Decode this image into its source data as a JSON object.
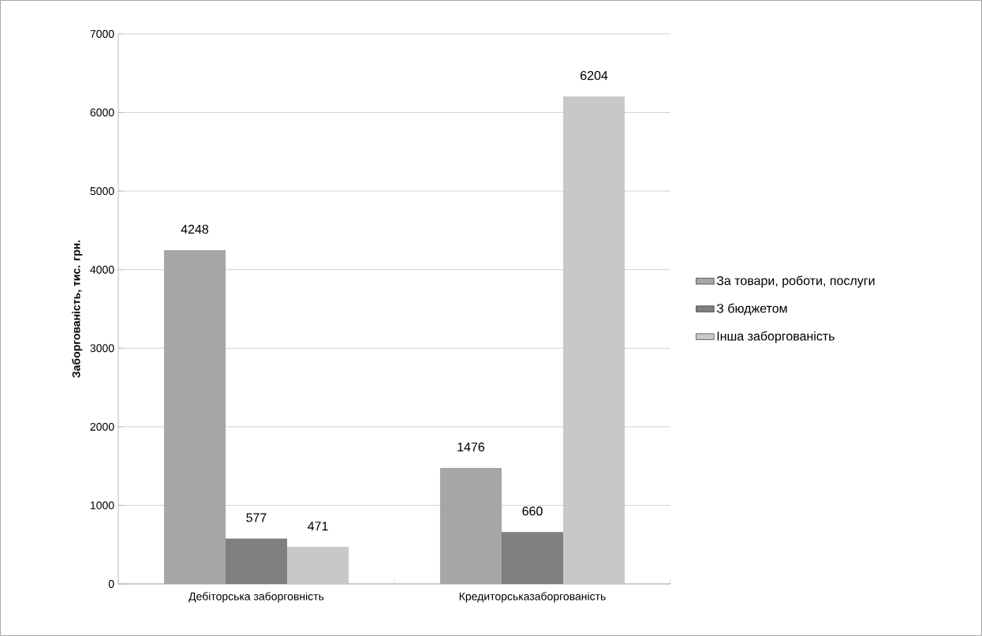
{
  "chart_data": {
    "type": "bar",
    "ylabel": "Заборгованість, тис. грн.",
    "categories": [
      "Дебіторська заборговність",
      "Кредиторськазаборгованість"
    ],
    "series": [
      {
        "name": "За товари, роботи, послуги",
        "color": "#a6a6a6",
        "values": [
          4248,
          1476
        ]
      },
      {
        "name": "З бюджетом",
        "color": "#7f7f7f",
        "values": [
          577,
          660
        ]
      },
      {
        "name": "Інша заборгованість",
        "color": "#c8c8c8",
        "values": [
          471,
          6204
        ]
      }
    ],
    "ylim": [
      0,
      7000
    ],
    "yticks": [
      0,
      1000,
      2000,
      3000,
      4000,
      5000,
      6000,
      7000
    ],
    "grid": "y",
    "legend": "right",
    "data_labels": true
  }
}
